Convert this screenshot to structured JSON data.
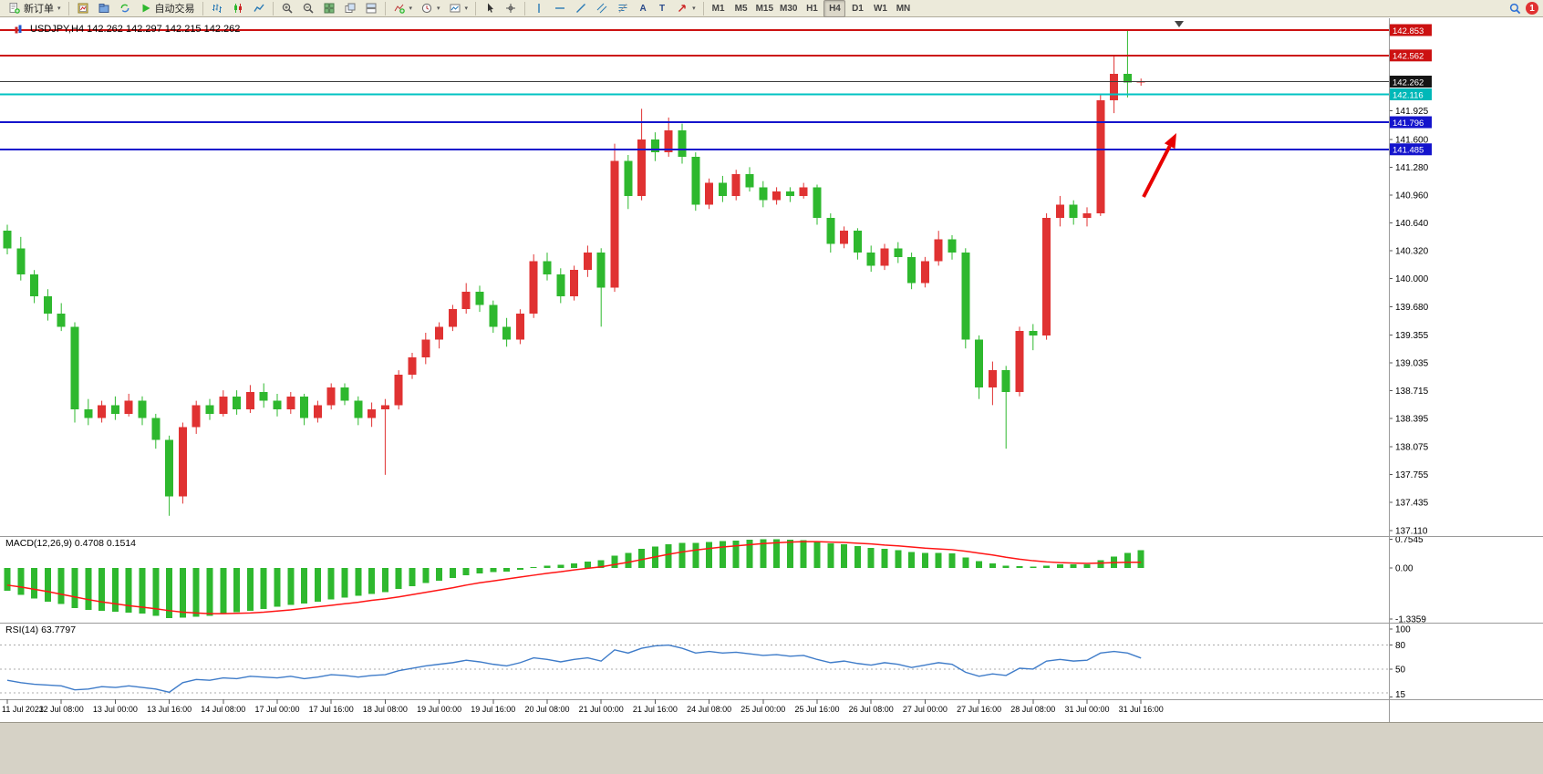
{
  "toolbar": {
    "new_order_label": "新订单",
    "auto_trading_label": "自动交易",
    "timeframes": [
      "M1",
      "M5",
      "M15",
      "M30",
      "H1",
      "H4",
      "D1",
      "W1",
      "MN"
    ],
    "active_timeframe": "H4",
    "notification_count": "1"
  },
  "icon_glyphs": {
    "dropdown": "▾",
    "text_tool": "A",
    "label_tool": "T"
  },
  "chart": {
    "title": "USDJPY,H4 142.262 142.297 142.215 142.262",
    "symbol": "USDJPY",
    "period": "H4",
    "ohlc": {
      "open": "142.262",
      "high": "142.297",
      "low": "142.215",
      "close": "142.262"
    }
  },
  "indicators": {
    "macd_label": "MACD(12,26,9) 0.4708 0.1514",
    "rsi_label": "RSI(14) 63.7797",
    "macd_axis": [
      "0.7545",
      "0.00",
      "-1.3359"
    ],
    "rsi_axis": [
      "100",
      "80",
      "50",
      "15"
    ],
    "rsi_levels": [
      80,
      50,
      20
    ]
  },
  "colors": {
    "up": "#e03232",
    "down": "#2eb82e",
    "macd_hist": "#2eb82e",
    "macd_signal": "#ff1515",
    "rsi_line": "#3f7cc9",
    "level_dash": "#ababab",
    "axis_text": "#000000",
    "divider": "#9a9a9a",
    "arrow": "#e80000"
  },
  "chart_data": {
    "type": "candlestick",
    "symbol": "USDJPY",
    "period": "H4",
    "y_axis_ticks": [
      "141.925",
      "141.600",
      "141.280",
      "140.960",
      "140.640",
      "140.320",
      "140.000",
      "139.680",
      "139.355",
      "139.035",
      "138.715",
      "138.395",
      "138.075",
      "137.755",
      "137.435",
      "137.110"
    ],
    "x_labels": [
      "11 Jul 2023",
      "12 Jul 08:00",
      "13 Jul 00:00",
      "13 Jul 16:00",
      "14 Jul 08:00",
      "17 Jul 00:00",
      "17 Jul 16:00",
      "18 Jul 08:00",
      "19 Jul 00:00",
      "19 Jul 16:00",
      "20 Jul 08:00",
      "21 Jul 00:00",
      "21 Jul 16:00",
      "24 Jul 08:00",
      "25 Jul 00:00",
      "25 Jul 16:00",
      "26 Jul 08:00",
      "27 Jul 00:00",
      "27 Jul 16:00",
      "28 Jul 08:00",
      "31 Jul 00:00",
      "31 Jul 16:00"
    ],
    "levels": [
      {
        "price": 142.853,
        "label": "142.853",
        "color": "#cc1111",
        "badge": "#cc1111",
        "width": 2
      },
      {
        "price": 142.562,
        "label": "142.562",
        "color": "#cc1111",
        "badge": "#cc1111",
        "width": 2
      },
      {
        "price": 142.116,
        "label": "142.116",
        "color": "#00c3c3",
        "badge": "#00b8b8",
        "width": 2
      },
      {
        "price": 141.796,
        "label": "141.796",
        "color": "#1414cc",
        "badge": "#1414cc",
        "width": 2
      },
      {
        "price": 141.485,
        "label": "141.485",
        "color": "#1414cc",
        "badge": "#1414cc",
        "width": 2
      }
    ],
    "current_price": {
      "value": 142.262,
      "label": "142.262",
      "line_color": "#3c3c3c",
      "badge": "#151515"
    },
    "candles": [
      [
        140.55,
        140.62,
        140.28,
        140.35
      ],
      [
        140.35,
        140.48,
        139.98,
        140.05
      ],
      [
        140.05,
        140.1,
        139.72,
        139.8
      ],
      [
        139.8,
        139.88,
        139.52,
        139.6
      ],
      [
        139.6,
        139.72,
        139.4,
        139.45
      ],
      [
        139.45,
        139.5,
        138.35,
        138.5
      ],
      [
        138.5,
        138.62,
        138.32,
        138.4
      ],
      [
        138.4,
        138.6,
        138.35,
        138.55
      ],
      [
        138.55,
        138.65,
        138.38,
        138.45
      ],
      [
        138.45,
        138.68,
        138.42,
        138.6
      ],
      [
        138.6,
        138.65,
        138.32,
        138.4
      ],
      [
        138.4,
        138.45,
        138.05,
        138.15
      ],
      [
        138.15,
        138.2,
        137.28,
        137.5
      ],
      [
        137.5,
        138.35,
        137.42,
        138.3
      ],
      [
        138.3,
        138.6,
        138.22,
        138.55
      ],
      [
        138.55,
        138.62,
        138.38,
        138.45
      ],
      [
        138.45,
        138.72,
        138.42,
        138.65
      ],
      [
        138.65,
        138.72,
        138.44,
        138.5
      ],
      [
        138.5,
        138.78,
        138.46,
        138.7
      ],
      [
        138.7,
        138.8,
        138.52,
        138.6
      ],
      [
        138.6,
        138.68,
        138.42,
        138.5
      ],
      [
        138.5,
        138.7,
        138.45,
        138.65
      ],
      [
        138.65,
        138.68,
        138.32,
        138.4
      ],
      [
        138.4,
        138.6,
        138.35,
        138.55
      ],
      [
        138.55,
        138.8,
        138.5,
        138.75
      ],
      [
        138.75,
        138.8,
        138.55,
        138.6
      ],
      [
        138.6,
        138.65,
        138.32,
        138.4
      ],
      [
        138.4,
        138.58,
        138.3,
        138.5
      ],
      [
        138.5,
        138.62,
        137.75,
        138.55
      ],
      [
        138.55,
        138.95,
        138.5,
        138.9
      ],
      [
        138.9,
        139.15,
        138.85,
        139.1
      ],
      [
        139.1,
        139.38,
        139.02,
        139.3
      ],
      [
        139.3,
        139.5,
        139.2,
        139.45
      ],
      [
        139.45,
        139.7,
        139.4,
        139.65
      ],
      [
        139.65,
        139.95,
        139.6,
        139.85
      ],
      [
        139.85,
        139.92,
        139.62,
        139.7
      ],
      [
        139.7,
        139.75,
        139.38,
        139.45
      ],
      [
        139.45,
        139.55,
        139.22,
        139.3
      ],
      [
        139.3,
        139.65,
        139.25,
        139.6
      ],
      [
        139.6,
        140.28,
        139.55,
        140.2
      ],
      [
        140.2,
        140.3,
        139.98,
        140.05
      ],
      [
        140.05,
        140.12,
        139.72,
        139.8
      ],
      [
        139.8,
        140.15,
        139.75,
        140.1
      ],
      [
        140.1,
        140.38,
        140.02,
        140.3
      ],
      [
        140.3,
        140.35,
        139.45,
        139.9
      ],
      [
        139.9,
        141.55,
        139.85,
        141.35
      ],
      [
        141.35,
        141.42,
        140.8,
        140.95
      ],
      [
        140.95,
        141.95,
        140.9,
        141.6
      ],
      [
        141.6,
        141.68,
        141.35,
        141.45
      ],
      [
        141.45,
        141.85,
        141.4,
        141.7
      ],
      [
        141.7,
        141.78,
        141.32,
        141.4
      ],
      [
        141.4,
        141.45,
        140.78,
        140.85
      ],
      [
        140.85,
        141.15,
        140.8,
        141.1
      ],
      [
        141.1,
        141.18,
        140.88,
        140.95
      ],
      [
        140.95,
        141.25,
        140.9,
        141.2
      ],
      [
        141.2,
        141.28,
        141.0,
        141.05
      ],
      [
        141.05,
        141.12,
        140.82,
        140.9
      ],
      [
        140.9,
        141.05,
        140.85,
        141.0
      ],
      [
        141.0,
        141.05,
        140.88,
        140.95
      ],
      [
        140.95,
        141.1,
        140.92,
        141.05
      ],
      [
        141.05,
        141.08,
        140.62,
        140.7
      ],
      [
        140.7,
        140.75,
        140.3,
        140.4
      ],
      [
        140.4,
        140.6,
        140.35,
        140.55
      ],
      [
        140.55,
        140.58,
        140.22,
        140.3
      ],
      [
        140.3,
        140.38,
        140.08,
        140.15
      ],
      [
        140.15,
        140.4,
        140.1,
        140.35
      ],
      [
        140.35,
        140.42,
        140.18,
        140.25
      ],
      [
        140.25,
        140.3,
        139.88,
        139.95
      ],
      [
        139.95,
        140.25,
        139.9,
        140.2
      ],
      [
        140.2,
        140.55,
        140.15,
        140.45
      ],
      [
        140.45,
        140.5,
        140.22,
        140.3
      ],
      [
        140.3,
        140.35,
        139.2,
        139.3
      ],
      [
        139.3,
        139.35,
        138.62,
        138.75
      ],
      [
        138.75,
        139.05,
        138.55,
        138.95
      ],
      [
        138.95,
        139.0,
        138.05,
        138.7
      ],
      [
        138.7,
        139.45,
        138.65,
        139.4
      ],
      [
        139.4,
        139.48,
        139.18,
        139.35
      ],
      [
        139.35,
        140.75,
        139.3,
        140.7
      ],
      [
        140.7,
        140.95,
        140.6,
        140.85
      ],
      [
        140.85,
        140.9,
        140.62,
        140.7
      ],
      [
        140.7,
        140.82,
        140.6,
        140.75
      ],
      [
        140.75,
        142.12,
        140.72,
        142.05
      ],
      [
        142.05,
        142.56,
        141.9,
        142.35
      ],
      [
        142.35,
        142.85,
        142.08,
        142.25
      ],
      [
        142.262,
        142.297,
        142.215,
        142.262
      ]
    ],
    "indicators": {
      "macd": {
        "histogram": [
          -0.6,
          -0.7,
          -0.8,
          -0.88,
          -0.95,
          -1.05,
          -1.1,
          -1.12,
          -1.15,
          -1.17,
          -1.2,
          -1.25,
          -1.32,
          -1.3,
          -1.28,
          -1.25,
          -1.2,
          -1.16,
          -1.12,
          -1.08,
          -1.02,
          -0.97,
          -0.93,
          -0.88,
          -0.82,
          -0.78,
          -0.73,
          -0.68,
          -0.63,
          -0.55,
          -0.48,
          -0.4,
          -0.33,
          -0.26,
          -0.19,
          -0.14,
          -0.11,
          -0.09,
          -0.05,
          0.02,
          0.06,
          0.08,
          0.12,
          0.17,
          0.2,
          0.32,
          0.4,
          0.5,
          0.56,
          0.62,
          0.66,
          0.66,
          0.68,
          0.7,
          0.72,
          0.74,
          0.75,
          0.75,
          0.74,
          0.73,
          0.7,
          0.65,
          0.62,
          0.58,
          0.53,
          0.5,
          0.47,
          0.42,
          0.4,
          0.4,
          0.38,
          0.28,
          0.18,
          0.12,
          0.06,
          0.05,
          0.03,
          0.06,
          0.09,
          0.1,
          0.1,
          0.2,
          0.3,
          0.4,
          0.47
        ],
        "signal": [
          -0.45,
          -0.5,
          -0.56,
          -0.62,
          -0.69,
          -0.76,
          -0.83,
          -0.89,
          -0.94,
          -0.99,
          -1.03,
          -1.07,
          -1.12,
          -1.16,
          -1.18,
          -1.2,
          -1.2,
          -1.19,
          -1.18,
          -1.16,
          -1.13,
          -1.1,
          -1.06,
          -1.02,
          -0.98,
          -0.94,
          -0.9,
          -0.85,
          -0.81,
          -0.76,
          -0.7,
          -0.64,
          -0.58,
          -0.52,
          -0.45,
          -0.39,
          -0.34,
          -0.29,
          -0.24,
          -0.19,
          -0.14,
          -0.1,
          -0.05,
          -0.01,
          0.03,
          0.09,
          0.15,
          0.22,
          0.29,
          0.36,
          0.42,
          0.47,
          0.51,
          0.55,
          0.58,
          0.61,
          0.64,
          0.66,
          0.68,
          0.69,
          0.69,
          0.68,
          0.67,
          0.65,
          0.63,
          0.6,
          0.58,
          0.55,
          0.52,
          0.5,
          0.48,
          0.44,
          0.39,
          0.34,
          0.28,
          0.23,
          0.19,
          0.16,
          0.14,
          0.13,
          0.12,
          0.13,
          0.14,
          0.15,
          0.15
        ]
      },
      "rsi": [
        36,
        33,
        31,
        30,
        29,
        24,
        25,
        28,
        27,
        29,
        27,
        25,
        21,
        33,
        37,
        36,
        39,
        38,
        41,
        40,
        39,
        41,
        38,
        40,
        43,
        42,
        40,
        42,
        43,
        48,
        51,
        54,
        56,
        58,
        61,
        59,
        56,
        54,
        58,
        64,
        62,
        59,
        62,
        64,
        60,
        74,
        70,
        76,
        79,
        80,
        76,
        70,
        72,
        70,
        71,
        69,
        67,
        68,
        66,
        67,
        62,
        58,
        60,
        57,
        55,
        58,
        56,
        52,
        55,
        58,
        56,
        46,
        41,
        44,
        42,
        51,
        50,
        60,
        62,
        60,
        61,
        70,
        72,
        70,
        63.78
      ]
    }
  },
  "annotations": {
    "arrow": {
      "tail": [
        1254,
        196
      ],
      "tip": [
        1290,
        126
      ]
    }
  }
}
